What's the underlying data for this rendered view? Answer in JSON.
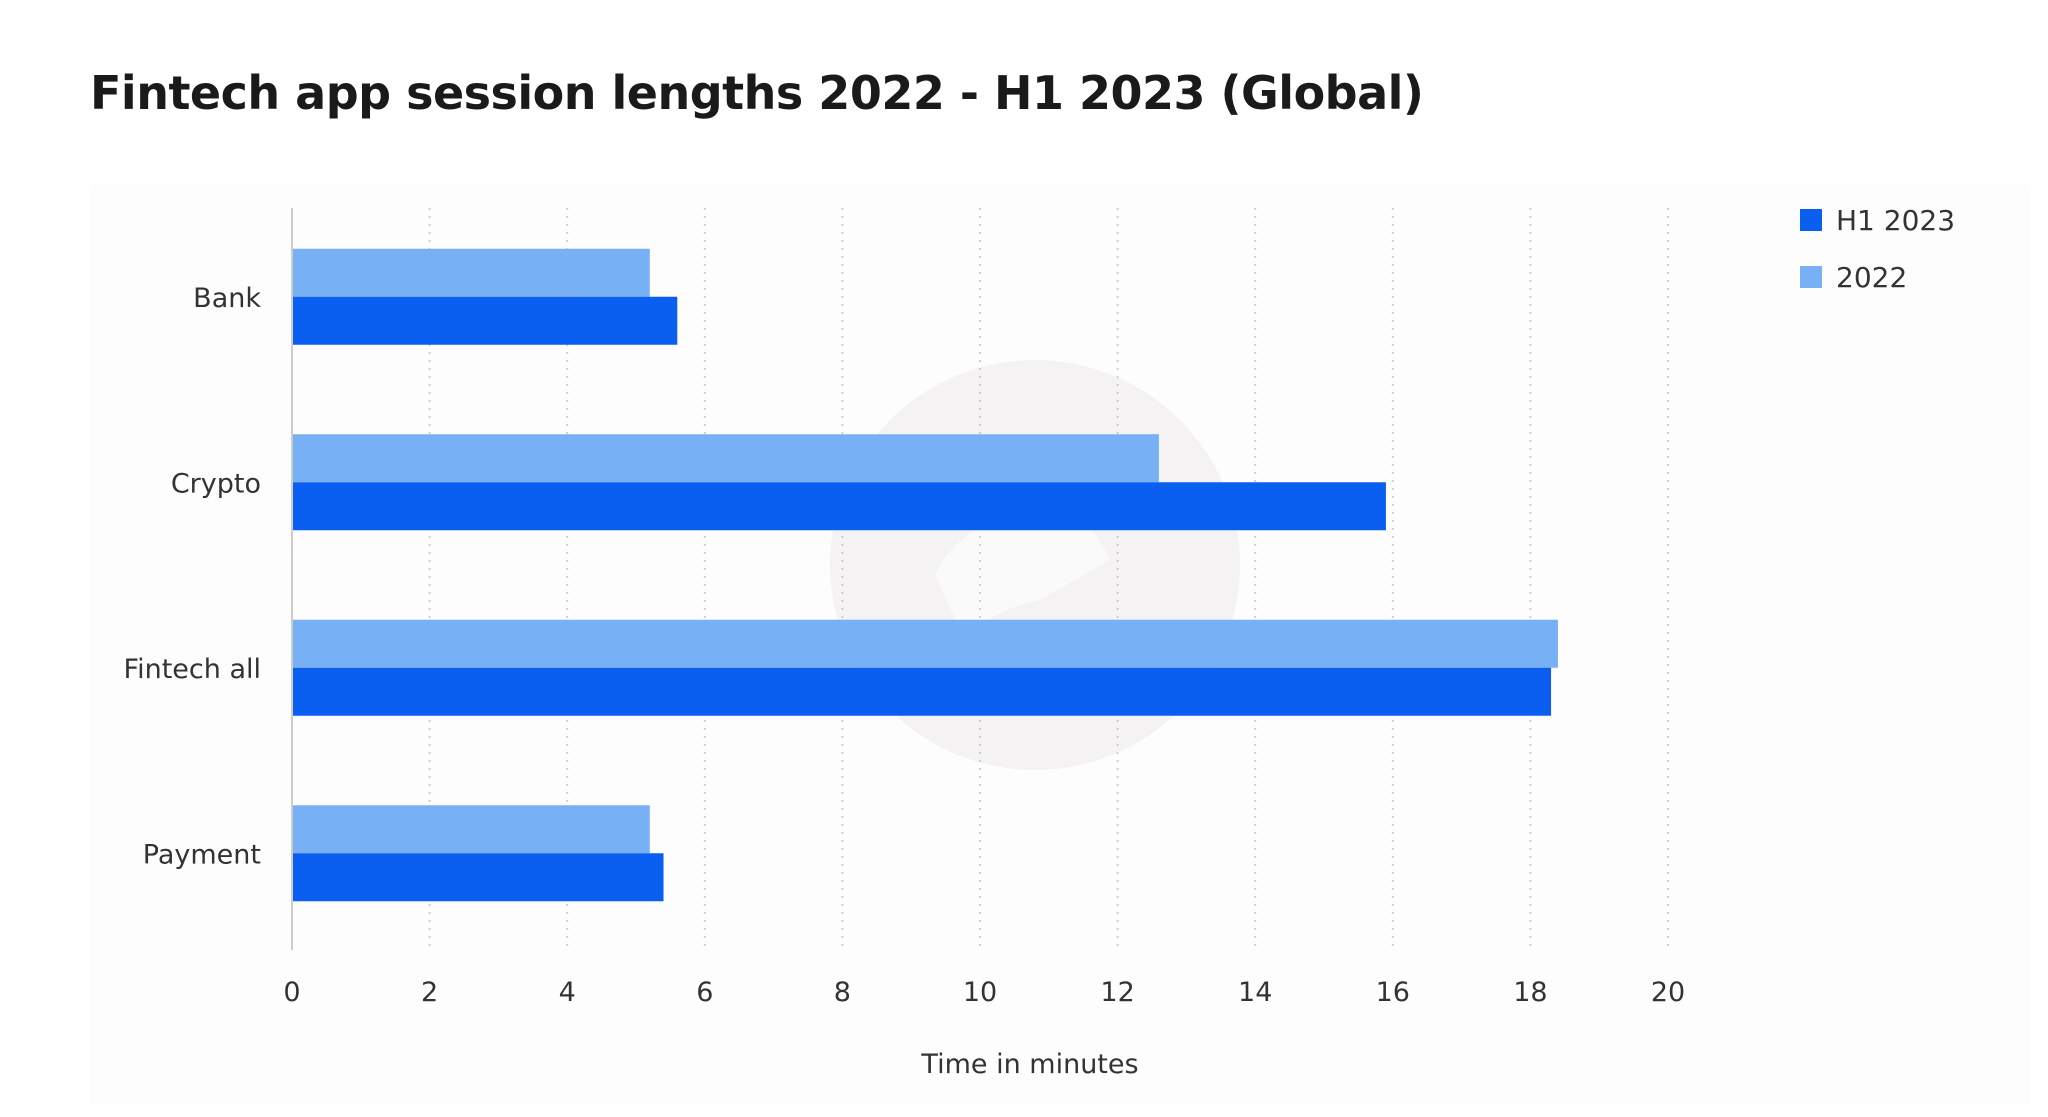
{
  "chart_data": {
    "type": "bar",
    "orientation": "horizontal",
    "title": "Fintech app session lengths 2022 - H1 2023 (Global)",
    "xlabel": "Time in minutes",
    "ylabel": "",
    "categories": [
      "Bank",
      "Crypto",
      "Fintech all",
      "Payment"
    ],
    "series": [
      {
        "name": "H1 2023",
        "color": "#0a5ef0",
        "values": [
          5.6,
          15.9,
          18.3,
          5.4
        ]
      },
      {
        "name": "2022",
        "color": "#78b0f5",
        "values": [
          5.2,
          12.6,
          18.4,
          5.2
        ]
      }
    ],
    "xlim": [
      0,
      20
    ],
    "xticks": [
      "0",
      "2",
      "4",
      "6",
      "8",
      "10",
      "12",
      "14",
      "16",
      "18",
      "20"
    ],
    "grid": "vertical dotted",
    "legend": "top-right"
  }
}
